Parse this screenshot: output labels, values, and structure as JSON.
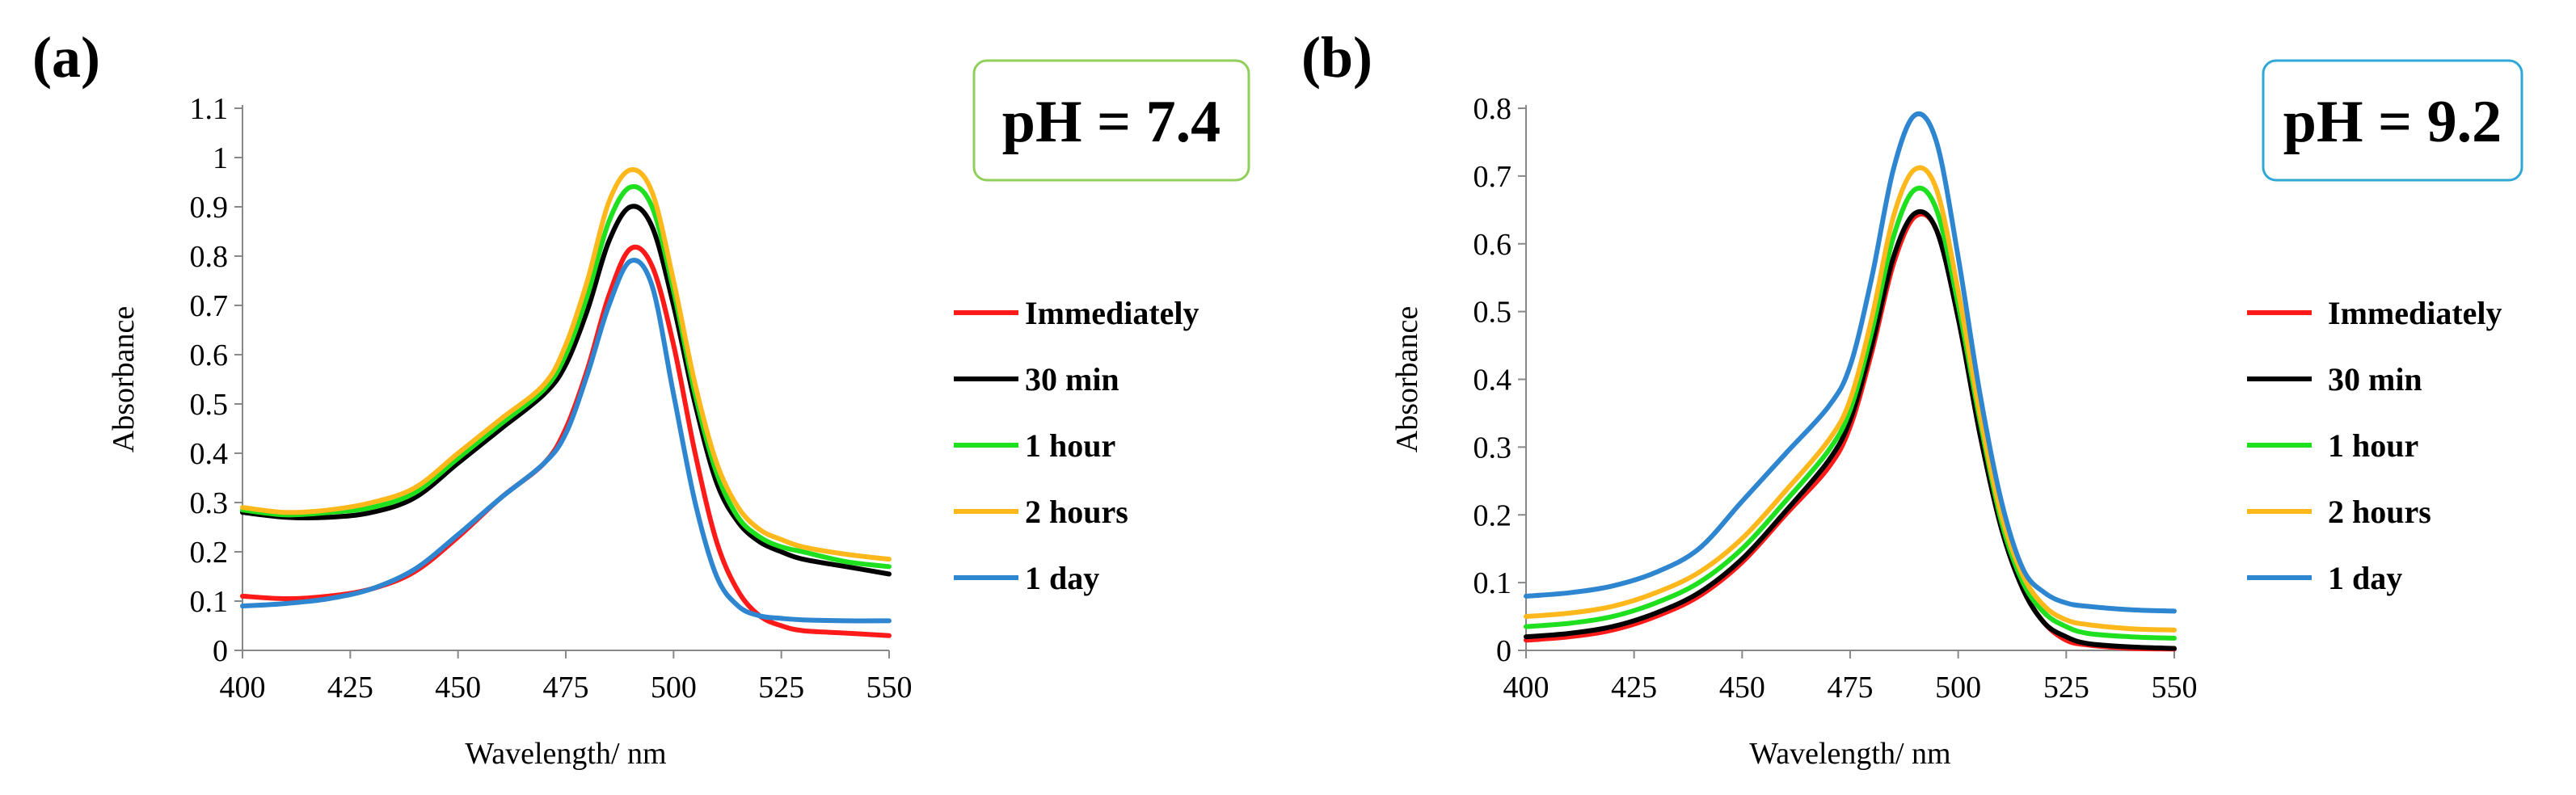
{
  "chart_data": [
    {
      "panel_label": "(a)",
      "type": "line",
      "condition": "pH = 7.4",
      "condition_border_color": "#8fcf5a",
      "xlabel": "Wavelength/  nm",
      "ylabel": "Absorbance",
      "xlim": [
        400,
        550
      ],
      "ylim": [
        0,
        1.1
      ],
      "x_ticks": [
        "400",
        "425",
        "450",
        "475",
        "500",
        "525",
        "550"
      ],
      "y_ticks": [
        "0",
        "0.1",
        "0.2",
        "0.3",
        "0.4",
        "0.5",
        "0.6",
        "0.7",
        "0.8",
        "0.9",
        "1",
        "1.1"
      ],
      "x": [
        400,
        410,
        420,
        430,
        440,
        450,
        460,
        470,
        475,
        480,
        485,
        490,
        495,
        500,
        505,
        510,
        515,
        520,
        525,
        530,
        540,
        550
      ],
      "series": [
        {
          "name": "Immediately",
          "color": "#ff1a1a",
          "values": [
            0.11,
            0.105,
            0.11,
            0.125,
            0.16,
            0.23,
            0.31,
            0.38,
            0.45,
            0.57,
            0.72,
            0.815,
            0.78,
            0.62,
            0.4,
            0.22,
            0.12,
            0.07,
            0.05,
            0.04,
            0.035,
            0.03
          ]
        },
        {
          "name": "30 min",
          "color": "#000000",
          "values": [
            0.28,
            0.27,
            0.27,
            0.28,
            0.31,
            0.38,
            0.45,
            0.52,
            0.58,
            0.69,
            0.83,
            0.9,
            0.86,
            0.7,
            0.5,
            0.34,
            0.26,
            0.22,
            0.2,
            0.185,
            0.17,
            0.155
          ]
        },
        {
          "name": "1 hour",
          "color": "#1fe01f",
          "values": [
            0.285,
            0.275,
            0.28,
            0.29,
            0.32,
            0.39,
            0.46,
            0.53,
            0.6,
            0.72,
            0.87,
            0.94,
            0.9,
            0.73,
            0.52,
            0.36,
            0.27,
            0.23,
            0.21,
            0.2,
            0.18,
            0.17
          ]
        },
        {
          "name": "2 hours",
          "color": "#ffb81c",
          "values": [
            0.29,
            0.28,
            0.285,
            0.3,
            0.33,
            0.4,
            0.47,
            0.54,
            0.62,
            0.75,
            0.91,
            0.975,
            0.93,
            0.75,
            0.54,
            0.38,
            0.29,
            0.245,
            0.225,
            0.21,
            0.195,
            0.185
          ]
        },
        {
          "name": "1 day",
          "color": "#2e86d0",
          "values": [
            0.09,
            0.095,
            0.105,
            0.125,
            0.165,
            0.235,
            0.31,
            0.38,
            0.44,
            0.56,
            0.7,
            0.79,
            0.74,
            0.52,
            0.3,
            0.15,
            0.09,
            0.07,
            0.065,
            0.062,
            0.06,
            0.06
          ]
        }
      ]
    },
    {
      "panel_label": "(b)",
      "type": "line",
      "condition": "pH = 9.2",
      "condition_border_color": "#2fa8d8",
      "xlabel": "Wavelength/  nm",
      "ylabel": "Absorbance",
      "xlim": [
        400,
        550
      ],
      "ylim": [
        0,
        0.8
      ],
      "x_ticks": [
        "400",
        "425",
        "450",
        "475",
        "500",
        "525",
        "550"
      ],
      "y_ticks": [
        "0",
        "0.1",
        "0.2",
        "0.3",
        "0.4",
        "0.5",
        "0.6",
        "0.7",
        "0.8"
      ],
      "x": [
        400,
        410,
        420,
        430,
        440,
        450,
        460,
        470,
        475,
        480,
        485,
        490,
        495,
        500,
        505,
        510,
        515,
        520,
        525,
        530,
        540,
        550
      ],
      "series": [
        {
          "name": "Immediately",
          "color": "#ff1a1a",
          "values": [
            0.015,
            0.02,
            0.03,
            0.05,
            0.08,
            0.13,
            0.2,
            0.27,
            0.33,
            0.44,
            0.57,
            0.64,
            0.62,
            0.49,
            0.32,
            0.18,
            0.09,
            0.04,
            0.015,
            0.008,
            0.003,
            0.002
          ]
        },
        {
          "name": "30 min",
          "color": "#000000",
          "values": [
            0.02,
            0.025,
            0.035,
            0.055,
            0.085,
            0.135,
            0.205,
            0.28,
            0.34,
            0.45,
            0.58,
            0.645,
            0.62,
            0.49,
            0.32,
            0.18,
            0.09,
            0.04,
            0.02,
            0.01,
            0.005,
            0.003
          ]
        },
        {
          "name": "1 hour",
          "color": "#1fe01f",
          "values": [
            0.035,
            0.04,
            0.05,
            0.07,
            0.1,
            0.15,
            0.22,
            0.295,
            0.355,
            0.47,
            0.61,
            0.68,
            0.65,
            0.51,
            0.34,
            0.19,
            0.1,
            0.055,
            0.035,
            0.025,
            0.02,
            0.018
          ]
        },
        {
          "name": "2 hours",
          "color": "#ffb81c",
          "values": [
            0.05,
            0.055,
            0.065,
            0.085,
            0.115,
            0.165,
            0.235,
            0.31,
            0.37,
            0.49,
            0.64,
            0.71,
            0.68,
            0.53,
            0.35,
            0.2,
            0.11,
            0.065,
            0.045,
            0.038,
            0.032,
            0.03
          ]
        },
        {
          "name": "1 day",
          "color": "#2e86d0",
          "values": [
            0.08,
            0.085,
            0.095,
            0.115,
            0.15,
            0.22,
            0.29,
            0.36,
            0.42,
            0.55,
            0.71,
            0.79,
            0.75,
            0.58,
            0.38,
            0.22,
            0.12,
            0.085,
            0.07,
            0.065,
            0.06,
            0.058
          ]
        }
      ]
    }
  ]
}
